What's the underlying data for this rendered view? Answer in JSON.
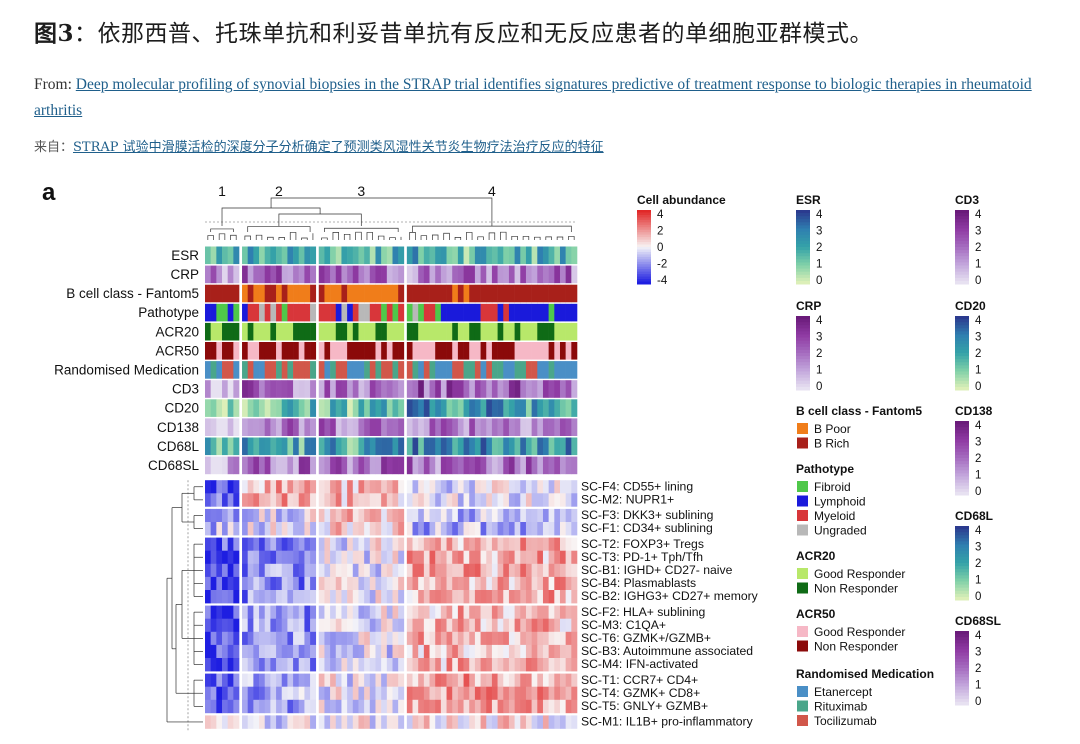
{
  "page": {
    "title_prefix": "图3",
    "title_rest": "：依那西普、托珠单抗和利妥昔单抗有反应和无反应患者的单细胞亚群模式。",
    "from_label": "From: ",
    "from_link": "Deep molecular profiling of synovial biopsies in the STRAP trial identifies signatures predictive of treatment response to biologic therapies in rheumatoid arthritis",
    "laizi_label": "来自：",
    "laizi_link": "STRAP 试验中滑膜活检的深度分子分析确定了预测类风湿性关节炎生物疗法治疗反应的特征"
  },
  "chart_data": {
    "type": "heatmap",
    "panel_label": "a",
    "cluster_labels": [
      "1",
      "2",
      "3",
      "4"
    ],
    "annotation_rows": [
      "ESR",
      "CRP",
      "B cell class - Fantom5",
      "Pathotype",
      "ACR20",
      "ACR50",
      "Randomised Medication",
      "CD3",
      "CD20",
      "CD138",
      "CD68L",
      "CD68SL"
    ],
    "heatmap_rows": [
      "SC-F4: CD55+ lining",
      "SC-M2: NUPR1+",
      "SC-F3: DKK3+ sublining",
      "SC-F1: CD34+ sublining",
      "SC-T2: FOXP3+ Tregs",
      "SC-T3: PD-1+ Tph/Tfh",
      "SC-B1: IGHD+ CD27- naive",
      "SC-B4: Plasmablasts",
      "SC-B2: IGHG3+ CD27+ memory",
      "SC-F2: HLA+ sublining",
      "SC-M3: C1QA+",
      "SC-T6: GZMK+/GZMB+",
      "SC-B3: Autoimmune associated",
      "SC-M4: IFN-activated",
      "SC-T1: CCR7+ CD4+",
      "SC-T4: GZMK+ CD8+",
      "SC-T5: GNLY+ GZMB+",
      "SC-M1: IL1B+ pro-inflammatory"
    ],
    "row_groups": [
      2,
      2,
      5,
      5,
      3,
      1
    ],
    "column_cluster_sizes": [
      6,
      13,
      15,
      30
    ],
    "cell_abundance_scale": {
      "title": "Cell abundance",
      "ticks": [
        "4",
        "2",
        "0",
        "-2",
        "-4"
      ],
      "range": [
        -4,
        4
      ]
    },
    "numeric_legends": [
      {
        "title": "ESR",
        "ticks": [
          "4",
          "3",
          "2",
          "1",
          "0"
        ],
        "colors": [
          "#2b3b8f",
          "#2f7fb0",
          "#35a2a8",
          "#7fd0a8",
          "#dcefb8"
        ]
      },
      {
        "title": "CD3",
        "ticks": [
          "4",
          "3",
          "2",
          "1",
          "0"
        ],
        "colors": [
          "#6a1b7a",
          "#8f3aa3",
          "#a56cc0",
          "#c3a7dc",
          "#e7e1f1"
        ]
      },
      {
        "title": "CRP",
        "ticks": [
          "4",
          "3",
          "2",
          "1",
          "0"
        ],
        "colors": [
          "#6a1b7a",
          "#8f3aa3",
          "#a56cc0",
          "#c3a7dc",
          "#e7e1f1"
        ]
      },
      {
        "title": "CD20",
        "ticks": [
          "4",
          "3",
          "2",
          "1",
          "0"
        ],
        "colors": [
          "#2b3b8f",
          "#2f7fb0",
          "#35a2a8",
          "#7fd0a8",
          "#dcefb8"
        ]
      },
      {
        "title": "CD138",
        "ticks": [
          "4",
          "3",
          "2",
          "1",
          "0"
        ],
        "colors": [
          "#6a1b7a",
          "#8f3aa3",
          "#a56cc0",
          "#c3a7dc",
          "#e7e1f1"
        ]
      },
      {
        "title": "CD68L",
        "ticks": [
          "4",
          "3",
          "2",
          "1",
          "0"
        ],
        "colors": [
          "#2b3b8f",
          "#2f7fb0",
          "#35a2a8",
          "#7fd0a8",
          "#dcefb8"
        ]
      },
      {
        "title": "CD68SL",
        "ticks": [
          "4",
          "3",
          "2",
          "1",
          "0"
        ],
        "colors": [
          "#6a1b7a",
          "#8f3aa3",
          "#a56cc0",
          "#c3a7dc",
          "#e7e1f1"
        ]
      }
    ],
    "categorical_legends": [
      {
        "title": "B cell class - Fantom5",
        "items": [
          {
            "label": "B Poor",
            "color": "#f07d1a"
          },
          {
            "label": "B Rich",
            "color": "#a8201a"
          }
        ]
      },
      {
        "title": "Pathotype",
        "items": [
          {
            "label": "Fibroid",
            "color": "#4fc84a"
          },
          {
            "label": "Lymphoid",
            "color": "#1a1adb"
          },
          {
            "label": "Myeloid",
            "color": "#d8363a"
          },
          {
            "label": "Ungraded",
            "color": "#b8b8b8"
          }
        ]
      },
      {
        "title": "ACR20",
        "items": [
          {
            "label": "Good Responder",
            "color": "#b8e86a"
          },
          {
            "label": "Non Responder",
            "color": "#0f6b16"
          }
        ]
      },
      {
        "title": "ACR50",
        "items": [
          {
            "label": "Good Responder",
            "color": "#f6b8c6"
          },
          {
            "label": "Non Responder",
            "color": "#8b0a0a"
          }
        ]
      },
      {
        "title": "Randomised Medication",
        "items": [
          {
            "label": "Etanercept",
            "color": "#4a8fc6"
          },
          {
            "label": "Rituximab",
            "color": "#4aa68a"
          },
          {
            "label": "Tocilizumab",
            "color": "#d1574a"
          }
        ]
      }
    ]
  }
}
